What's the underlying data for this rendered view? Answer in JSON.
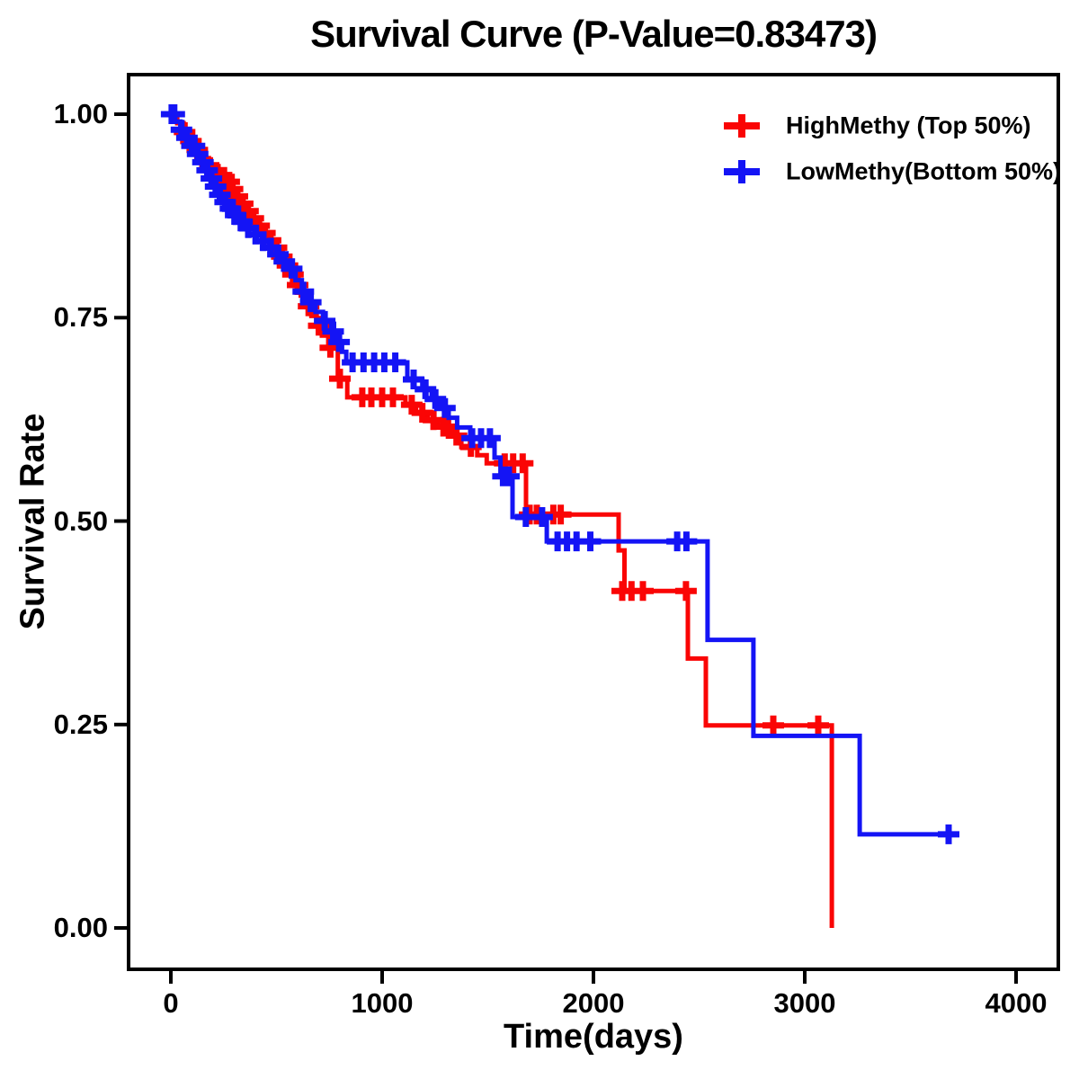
{
  "chart_data": {
    "type": "line",
    "subtype": "kaplan-meier-survival-step",
    "title": "Survival Curve (P-Value=0.83473)",
    "p_value": "0.83473",
    "xlabel": "Time(days)",
    "ylabel": "Survival Rate",
    "xlim": [
      0,
      4000
    ],
    "ylim": [
      0.0,
      1.0
    ],
    "xticks": [
      0,
      1000,
      2000,
      3000,
      4000
    ],
    "yticks": [
      "0.00",
      "0.25",
      "0.50",
      "0.75",
      "1.00"
    ],
    "grid": false,
    "legend_position": "top-right-inside",
    "frame_color": "#000000",
    "series": [
      {
        "id": "highmethy",
        "name": "HighMethy (Top 50%)",
        "color": "#fa0505",
        "end_time": 3128,
        "steps": [
          [
            0,
            1.0
          ],
          [
            30,
            0.989
          ],
          [
            60,
            0.978
          ],
          [
            90,
            0.967
          ],
          [
            120,
            0.956
          ],
          [
            150,
            0.946
          ],
          [
            180,
            0.935
          ],
          [
            210,
            0.929
          ],
          [
            235,
            0.923
          ],
          [
            260,
            0.917
          ],
          [
            285,
            0.908
          ],
          [
            310,
            0.899
          ],
          [
            330,
            0.89
          ],
          [
            355,
            0.881
          ],
          [
            380,
            0.872
          ],
          [
            405,
            0.863
          ],
          [
            430,
            0.854
          ],
          [
            460,
            0.845
          ],
          [
            490,
            0.836
          ],
          [
            515,
            0.825
          ],
          [
            540,
            0.814
          ],
          [
            565,
            0.803
          ],
          [
            590,
            0.79
          ],
          [
            615,
            0.777
          ],
          [
            640,
            0.764
          ],
          [
            665,
            0.752
          ],
          [
            690,
            0.74
          ],
          [
            715,
            0.728
          ],
          [
            745,
            0.713
          ],
          [
            790,
            0.675
          ],
          [
            835,
            0.652
          ],
          [
            1110,
            0.643
          ],
          [
            1160,
            0.633
          ],
          [
            1215,
            0.624
          ],
          [
            1265,
            0.616
          ],
          [
            1330,
            0.605
          ],
          [
            1375,
            0.591
          ],
          [
            1450,
            0.581
          ],
          [
            1495,
            0.571
          ],
          [
            1681,
            0.508
          ],
          [
            2119,
            0.464
          ],
          [
            2147,
            0.414
          ],
          [
            2447,
            0.331
          ],
          [
            2532,
            0.249
          ],
          [
            3128,
            0.0
          ]
        ],
        "censors": [
          [
            65,
            0.978
          ],
          [
            95,
            0.967
          ],
          [
            125,
            0.956
          ],
          [
            185,
            0.935
          ],
          [
            215,
            0.929
          ],
          [
            240,
            0.923
          ],
          [
            252,
            0.923
          ],
          [
            265,
            0.917
          ],
          [
            276,
            0.917
          ],
          [
            292,
            0.908
          ],
          [
            315,
            0.899
          ],
          [
            340,
            0.89
          ],
          [
            365,
            0.881
          ],
          [
            390,
            0.872
          ],
          [
            418,
            0.863
          ],
          [
            445,
            0.854
          ],
          [
            472,
            0.845
          ],
          [
            500,
            0.836
          ],
          [
            525,
            0.825
          ],
          [
            552,
            0.814
          ],
          [
            578,
            0.803
          ],
          [
            600,
            0.79
          ],
          [
            652,
            0.764
          ],
          [
            700,
            0.74
          ],
          [
            755,
            0.713
          ],
          [
            800,
            0.675
          ],
          [
            906,
            0.652
          ],
          [
            949,
            0.652
          ],
          [
            1000,
            0.652
          ],
          [
            1051,
            0.652
          ],
          [
            1140,
            0.643
          ],
          [
            1190,
            0.633
          ],
          [
            1243,
            0.624
          ],
          [
            1290,
            0.616
          ],
          [
            1312,
            0.616
          ],
          [
            1352,
            0.605
          ],
          [
            1420,
            0.591
          ],
          [
            1580,
            0.571
          ],
          [
            1620,
            0.571
          ],
          [
            1665,
            0.571
          ],
          [
            1698,
            0.508
          ],
          [
            1732,
            0.508
          ],
          [
            1810,
            0.508
          ],
          [
            1845,
            0.508
          ],
          [
            2136,
            0.414
          ],
          [
            2180,
            0.414
          ],
          [
            2234,
            0.414
          ],
          [
            2438,
            0.414
          ],
          [
            2851,
            0.249
          ],
          [
            3064,
            0.249
          ]
        ]
      },
      {
        "id": "lowmethy",
        "name": "LowMethy(Bottom 50%)",
        "color": "#1414f5",
        "end_time": 3723,
        "steps": [
          [
            0,
            1.0
          ],
          [
            20,
            0.991
          ],
          [
            45,
            0.981
          ],
          [
            70,
            0.971
          ],
          [
            95,
            0.961
          ],
          [
            120,
            0.951
          ],
          [
            145,
            0.941
          ],
          [
            165,
            0.931
          ],
          [
            185,
            0.921
          ],
          [
            205,
            0.911
          ],
          [
            225,
            0.901
          ],
          [
            250,
            0.892
          ],
          [
            275,
            0.884
          ],
          [
            300,
            0.876
          ],
          [
            330,
            0.868
          ],
          [
            360,
            0.86
          ],
          [
            395,
            0.852
          ],
          [
            430,
            0.844
          ],
          [
            465,
            0.836
          ],
          [
            500,
            0.828
          ],
          [
            530,
            0.819
          ],
          [
            560,
            0.81
          ],
          [
            590,
            0.796
          ],
          [
            620,
            0.782
          ],
          [
            650,
            0.769
          ],
          [
            685,
            0.757
          ],
          [
            720,
            0.746
          ],
          [
            760,
            0.733
          ],
          [
            790,
            0.72
          ],
          [
            810,
            0.708
          ],
          [
            830,
            0.695
          ],
          [
            1119,
            0.674
          ],
          [
            1190,
            0.662
          ],
          [
            1235,
            0.65
          ],
          [
            1275,
            0.639
          ],
          [
            1315,
            0.627
          ],
          [
            1355,
            0.615
          ],
          [
            1417,
            0.602
          ],
          [
            1532,
            0.578
          ],
          [
            1560,
            0.555
          ],
          [
            1617,
            0.505
          ],
          [
            1779,
            0.475
          ],
          [
            2540,
            0.354
          ],
          [
            2757,
            0.236
          ],
          [
            3260,
            0.115
          ]
        ],
        "censors": [
          [
            4,
            1.0
          ],
          [
            16,
            1.0
          ],
          [
            50,
            0.981
          ],
          [
            76,
            0.971
          ],
          [
            100,
            0.961
          ],
          [
            112,
            0.961
          ],
          [
            127,
            0.951
          ],
          [
            152,
            0.941
          ],
          [
            172,
            0.931
          ],
          [
            192,
            0.921
          ],
          [
            212,
            0.911
          ],
          [
            232,
            0.901
          ],
          [
            257,
            0.892
          ],
          [
            282,
            0.884
          ],
          [
            307,
            0.876
          ],
          [
            337,
            0.868
          ],
          [
            367,
            0.86
          ],
          [
            402,
            0.852
          ],
          [
            437,
            0.844
          ],
          [
            472,
            0.836
          ],
          [
            507,
            0.828
          ],
          [
            537,
            0.819
          ],
          [
            572,
            0.81
          ],
          [
            627,
            0.782
          ],
          [
            662,
            0.769
          ],
          [
            728,
            0.746
          ],
          [
            768,
            0.733
          ],
          [
            796,
            0.72
          ],
          [
            860,
            0.695
          ],
          [
            912,
            0.695
          ],
          [
            962,
            0.695
          ],
          [
            1010,
            0.695
          ],
          [
            1062,
            0.695
          ],
          [
            1149,
            0.674
          ],
          [
            1205,
            0.662
          ],
          [
            1252,
            0.65
          ],
          [
            1297,
            0.639
          ],
          [
            1426,
            0.602
          ],
          [
            1468,
            0.602
          ],
          [
            1510,
            0.602
          ],
          [
            1572,
            0.555
          ],
          [
            1600,
            0.555
          ],
          [
            1680,
            0.505
          ],
          [
            1757,
            0.505
          ],
          [
            1830,
            0.475
          ],
          [
            1875,
            0.475
          ],
          [
            1920,
            0.475
          ],
          [
            1985,
            0.475
          ],
          [
            2396,
            0.475
          ],
          [
            2440,
            0.475
          ],
          [
            3681,
            0.115
          ]
        ]
      }
    ]
  }
}
